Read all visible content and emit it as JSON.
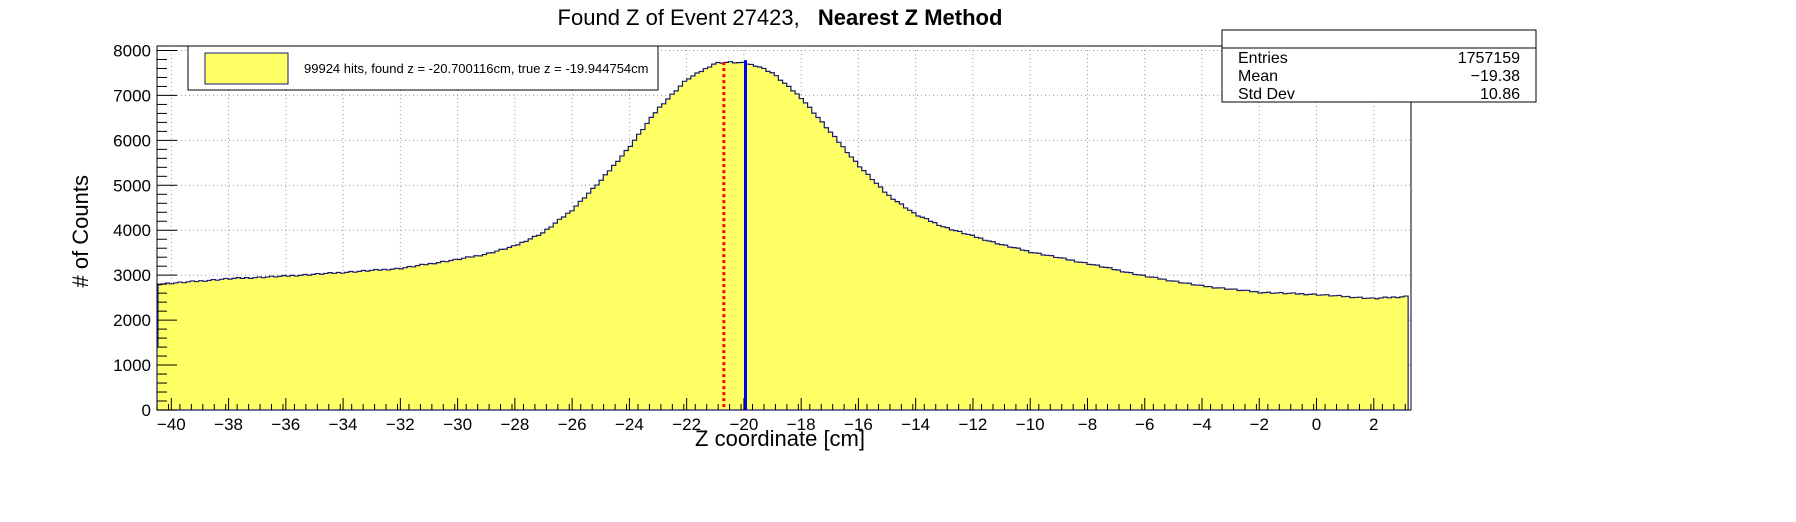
{
  "chart_data": {
    "type": "histogram",
    "title": "Found Z of Event 27423,",
    "title_method": "Nearest Z Method",
    "xlabel": "Z coordinate [cm]",
    "ylabel": "# of Counts",
    "xlim": [
      -40.5,
      3.3
    ],
    "ylim": [
      0,
      8100
    ],
    "x_ticks": [
      -40,
      -38,
      -36,
      -34,
      -32,
      -30,
      -28,
      -26,
      -24,
      -22,
      -20,
      -18,
      -16,
      -14,
      -12,
      -10,
      -8,
      -6,
      -4,
      -2,
      0,
      2
    ],
    "y_ticks": [
      0,
      1000,
      2000,
      3000,
      4000,
      5000,
      6000,
      7000,
      8000
    ],
    "grid": true,
    "fill_color": "#ffff66",
    "line_color": "#1a1a6e",
    "profile": {
      "x": [
        -40.5,
        -40,
        -38,
        -36,
        -34,
        -32,
        -30,
        -29,
        -28,
        -27,
        -26,
        -25,
        -24,
        -23,
        -22,
        -21,
        -20.5,
        -20,
        -19.5,
        -19,
        -18,
        -17,
        -16,
        -15,
        -14,
        -13,
        -12,
        -11,
        -10,
        -8,
        -6,
        -4,
        -2,
        0,
        2,
        3.2
      ],
      "y": [
        2800,
        2820,
        2920,
        2980,
        3060,
        3150,
        3350,
        3470,
        3650,
        3950,
        4450,
        5100,
        5850,
        6700,
        7350,
        7720,
        7740,
        7720,
        7650,
        7500,
        6950,
        6200,
        5450,
        4800,
        4350,
        4070,
        3870,
        3680,
        3520,
        3260,
        2980,
        2760,
        2620,
        2570,
        2480,
        2530
      ]
    },
    "legend": {
      "position": "top-left",
      "label": "99924 hits, found z = -20.700116cm, true z = -19.944754cm"
    },
    "markers": {
      "found_z": {
        "value": -20.700116,
        "color": "#ff0000",
        "style": "dotted"
      },
      "true_z": {
        "value": -19.944754,
        "color": "#0000ff",
        "style": "solid"
      }
    },
    "stats": {
      "position": "top-right",
      "rows": [
        {
          "label": "Entries",
          "value": "1757159"
        },
        {
          "label": "Mean",
          "value": "−19.38"
        },
        {
          "label": "Std Dev",
          "value": "10.86"
        }
      ]
    }
  }
}
